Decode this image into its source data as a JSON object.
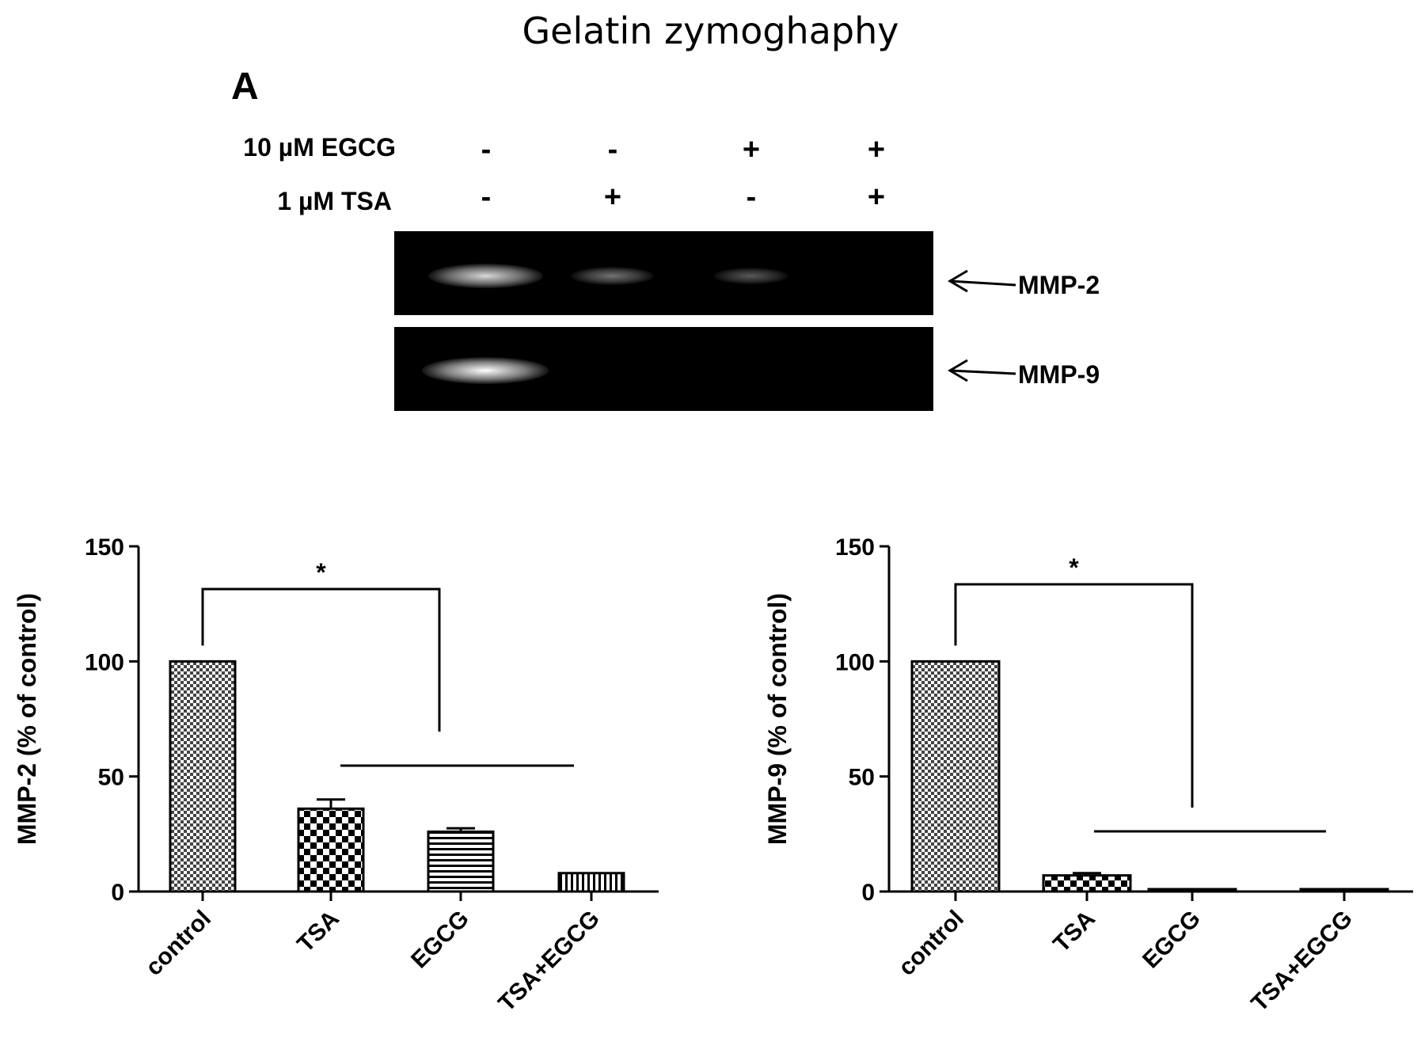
{
  "figure": {
    "title": "Gelatin zymoghaphy",
    "panel_label": "A"
  },
  "gel": {
    "rows": [
      {
        "label": "10 µM EGCG",
        "signs": [
          "-",
          "-",
          "+",
          "+"
        ]
      },
      {
        "label": "1 µM TSA",
        "signs": [
          "-",
          "+",
          "-",
          "+"
        ]
      }
    ],
    "bands": [
      {
        "label": "MMP-2",
        "intensities": [
          0.85,
          0.45,
          0.35,
          0.0
        ]
      },
      {
        "label": "MMP-9",
        "intensities": [
          1.0,
          0.0,
          0.0,
          0.0
        ]
      }
    ],
    "colors": {
      "background": "#000000",
      "band": "#ffffff"
    }
  },
  "chart_data": [
    {
      "type": "bar",
      "categories": [
        "control",
        "TSA",
        "EGCG",
        "TSA+EGCG"
      ],
      "values": [
        100,
        36,
        26,
        8
      ],
      "errors": [
        0,
        4,
        1.5,
        0
      ],
      "patterns": [
        "fine-check",
        "coarse-check",
        "horizontal-lines",
        "vertical-lines"
      ],
      "xlabel": "",
      "ylabel": "MMP-2 (% of control)",
      "ylim": [
        0,
        150
      ],
      "yticks": [
        0,
        50,
        100,
        150
      ],
      "significance": {
        "symbol": "*",
        "from": "control",
        "to_group": [
          "TSA",
          "EGCG",
          "TSA+EGCG"
        ]
      }
    },
    {
      "type": "bar",
      "categories": [
        "control",
        "TSA",
        "EGCG",
        "TSA+EGCG"
      ],
      "values": [
        100,
        7,
        0.5,
        0.5
      ],
      "errors": [
        0,
        1,
        0,
        0
      ],
      "patterns": [
        "fine-check",
        "coarse-check",
        "horizontal-lines",
        "vertical-lines"
      ],
      "xlabel": "",
      "ylabel": "MMP-9 (% of control)",
      "ylim": [
        0,
        150
      ],
      "yticks": [
        0,
        50,
        100,
        150
      ],
      "significance": {
        "symbol": "*",
        "from": "control",
        "to_group": [
          "TSA",
          "EGCG",
          "TSA+EGCG"
        ]
      }
    }
  ]
}
